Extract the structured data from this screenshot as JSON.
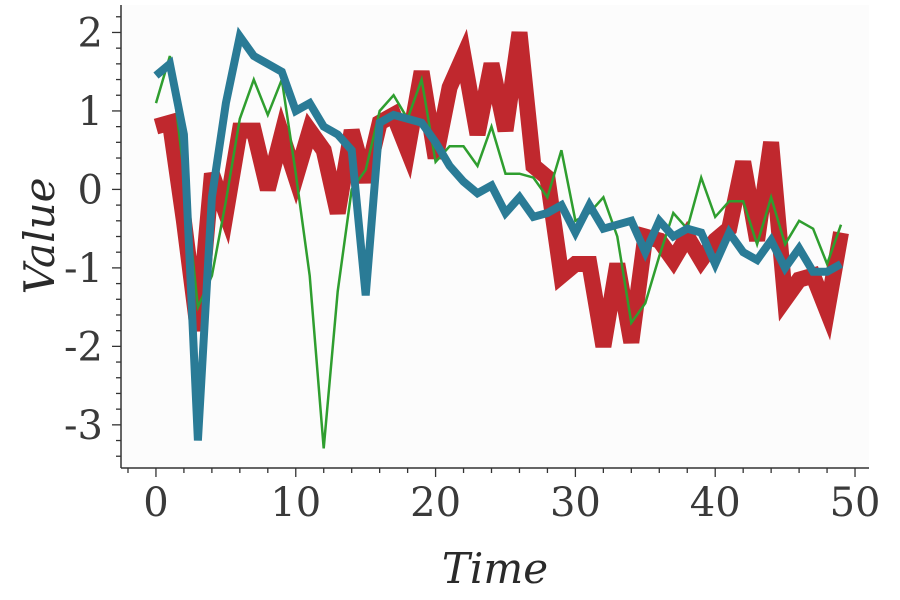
{
  "chart_data": {
    "type": "line",
    "title": "",
    "xlabel": "Time",
    "ylabel": "Value",
    "xlim": [
      -2.5,
      51
    ],
    "ylim": [
      -3.55,
      2.35
    ],
    "x_ticks": [
      0,
      10,
      20,
      30,
      40,
      50
    ],
    "y_ticks": [
      2,
      1,
      0,
      -1,
      -2,
      -3
    ],
    "x_tick_labels": [
      "0",
      "10",
      "20",
      "30",
      "40",
      "50"
    ],
    "y_tick_labels": [
      "2",
      "1",
      "0",
      "-1",
      "-2",
      "-3"
    ],
    "grid": false,
    "legend": false,
    "x": [
      0,
      1,
      2,
      3,
      4,
      5,
      6,
      7,
      8,
      9,
      10,
      11,
      12,
      13,
      14,
      15,
      16,
      17,
      18,
      19,
      20,
      21,
      22,
      23,
      24,
      25,
      26,
      27,
      28,
      29,
      30,
      31,
      32,
      33,
      34,
      35,
      36,
      37,
      38,
      39,
      40,
      41,
      42,
      43,
      44,
      45,
      46,
      47,
      48,
      49
    ],
    "series": [
      {
        "color": "#c0282e",
        "values": [
          0.8,
          0.85,
          -0.4,
          -1.8,
          0.2,
          -0.3,
          0.75,
          0.75,
          0.0,
          0.7,
          0.15,
          0.75,
          0.5,
          -0.3,
          0.75,
          0.1,
          0.85,
          0.95,
          0.5,
          1.5,
          0.4,
          1.3,
          1.7,
          0.7,
          1.6,
          0.75,
          2.0,
          0.3,
          0.15,
          -1.1,
          -0.95,
          -0.95,
          -2.0,
          -0.95,
          -1.95,
          -0.6,
          -0.65,
          -0.9,
          -0.6,
          -0.9,
          -0.65,
          -0.5,
          0.35,
          -0.65,
          0.6,
          -1.4,
          -1.15,
          -1.1,
          -1.55,
          -0.55
        ]
      },
      {
        "color": "#2f9e2f",
        "values": [
          1.1,
          1.7,
          0.2,
          -1.5,
          -1.1,
          -0.15,
          0.9,
          1.4,
          0.95,
          1.4,
          0.2,
          -1.1,
          -3.3,
          -1.3,
          0.0,
          0.25,
          1.0,
          1.2,
          0.9,
          1.4,
          0.35,
          0.55,
          0.55,
          0.3,
          0.8,
          0.2,
          0.2,
          0.15,
          -0.1,
          0.5,
          -0.4,
          -0.3,
          -0.1,
          -0.6,
          -1.7,
          -1.45,
          -0.85,
          -0.3,
          -0.5,
          0.15,
          -0.35,
          -0.15,
          -0.15,
          -0.7,
          -0.1,
          -0.7,
          -0.4,
          -0.5,
          -0.95,
          -0.45
        ]
      },
      {
        "color": "#2a7b96",
        "values": [
          1.45,
          1.6,
          0.7,
          -3.2,
          -0.1,
          1.1,
          1.95,
          1.7,
          1.6,
          1.5,
          1.0,
          1.1,
          0.8,
          0.7,
          0.5,
          -1.35,
          0.85,
          0.95,
          0.9,
          0.85,
          0.6,
          0.3,
          0.1,
          -0.05,
          0.05,
          -0.3,
          -0.1,
          -0.35,
          -0.3,
          -0.2,
          -0.55,
          -0.2,
          -0.5,
          -0.45,
          -0.4,
          -0.8,
          -0.4,
          -0.6,
          -0.5,
          -0.55,
          -0.95,
          -0.55,
          -0.8,
          -0.9,
          -0.65,
          -1.0,
          -0.75,
          -1.05,
          -1.05,
          -0.95
        ]
      }
    ]
  }
}
